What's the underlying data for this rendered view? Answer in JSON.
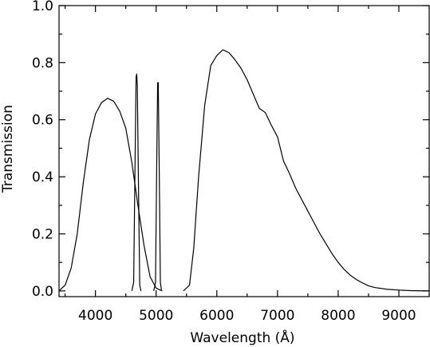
{
  "chart_data": {
    "type": "line",
    "title": "",
    "xlabel": "Wavelength (Å)",
    "ylabel": "Transmission",
    "xlim": [
      3400,
      9500
    ],
    "ylim": [
      -0.02,
      1.0
    ],
    "grid": false,
    "legend": "none",
    "x_ticks": [
      4000,
      5000,
      6000,
      7000,
      8000,
      9000
    ],
    "x_tick_labels": [
      "4000",
      "5000",
      "6000",
      "7000",
      "8000",
      "9000"
    ],
    "y_ticks": [
      0.0,
      0.2,
      0.4,
      0.6,
      0.8,
      1.0
    ],
    "y_tick_labels": [
      "0.0",
      "0.2",
      "0.4",
      "0.6",
      "0.8",
      "1.0"
    ],
    "series": [
      {
        "points": [
          [
            3400,
            0
          ],
          [
            3500,
            0.02
          ],
          [
            3600,
            0.08
          ],
          [
            3700,
            0.2
          ],
          [
            3800,
            0.38
          ],
          [
            3900,
            0.53
          ],
          [
            4000,
            0.62
          ],
          [
            4100,
            0.66
          ],
          [
            4200,
            0.675
          ],
          [
            4300,
            0.665
          ],
          [
            4400,
            0.63
          ],
          [
            4500,
            0.57
          ],
          [
            4600,
            0.45
          ],
          [
            4700,
            0.3
          ],
          [
            4800,
            0.16
          ],
          [
            4900,
            0.05
          ],
          [
            5000,
            0.01
          ],
          [
            5100,
            0
          ]
        ]
      },
      {
        "points": [
          [
            4600,
            0
          ],
          [
            4630,
            0.03
          ],
          [
            4650,
            0.4
          ],
          [
            4670,
            0.75
          ],
          [
            4680,
            0.76
          ],
          [
            4690,
            0.72
          ],
          [
            4710,
            0.35
          ],
          [
            4730,
            0.02
          ],
          [
            4750,
            0
          ]
        ]
      },
      {
        "points": [
          [
            4960,
            0
          ],
          [
            4990,
            0.03
          ],
          [
            5010,
            0.45
          ],
          [
            5025,
            0.73
          ],
          [
            5035,
            0.73
          ],
          [
            5050,
            0.45
          ],
          [
            5070,
            0.03
          ],
          [
            5090,
            0
          ]
        ]
      },
      {
        "points": [
          [
            5450,
            0
          ],
          [
            5550,
            0.02
          ],
          [
            5620,
            0.15
          ],
          [
            5700,
            0.4
          ],
          [
            5800,
            0.65
          ],
          [
            5900,
            0.79
          ],
          [
            6000,
            0.825
          ],
          [
            6100,
            0.845
          ],
          [
            6200,
            0.835
          ],
          [
            6300,
            0.81
          ],
          [
            6400,
            0.78
          ],
          [
            6500,
            0.74
          ],
          [
            6600,
            0.69
          ],
          [
            6700,
            0.64
          ],
          [
            6800,
            0.625
          ],
          [
            6900,
            0.58
          ],
          [
            7000,
            0.54
          ],
          [
            7100,
            0.455
          ],
          [
            7200,
            0.41
          ],
          [
            7300,
            0.36
          ],
          [
            7400,
            0.32
          ],
          [
            7500,
            0.28
          ],
          [
            7600,
            0.24
          ],
          [
            7700,
            0.2
          ],
          [
            7800,
            0.165
          ],
          [
            7900,
            0.13
          ],
          [
            8000,
            0.1
          ],
          [
            8100,
            0.075
          ],
          [
            8200,
            0.055
          ],
          [
            8300,
            0.04
          ],
          [
            8400,
            0.028
          ],
          [
            8500,
            0.018
          ],
          [
            8600,
            0.012
          ],
          [
            8800,
            0.006
          ],
          [
            9000,
            0.003
          ],
          [
            9200,
            0.001
          ],
          [
            9500,
            0
          ]
        ]
      }
    ]
  }
}
